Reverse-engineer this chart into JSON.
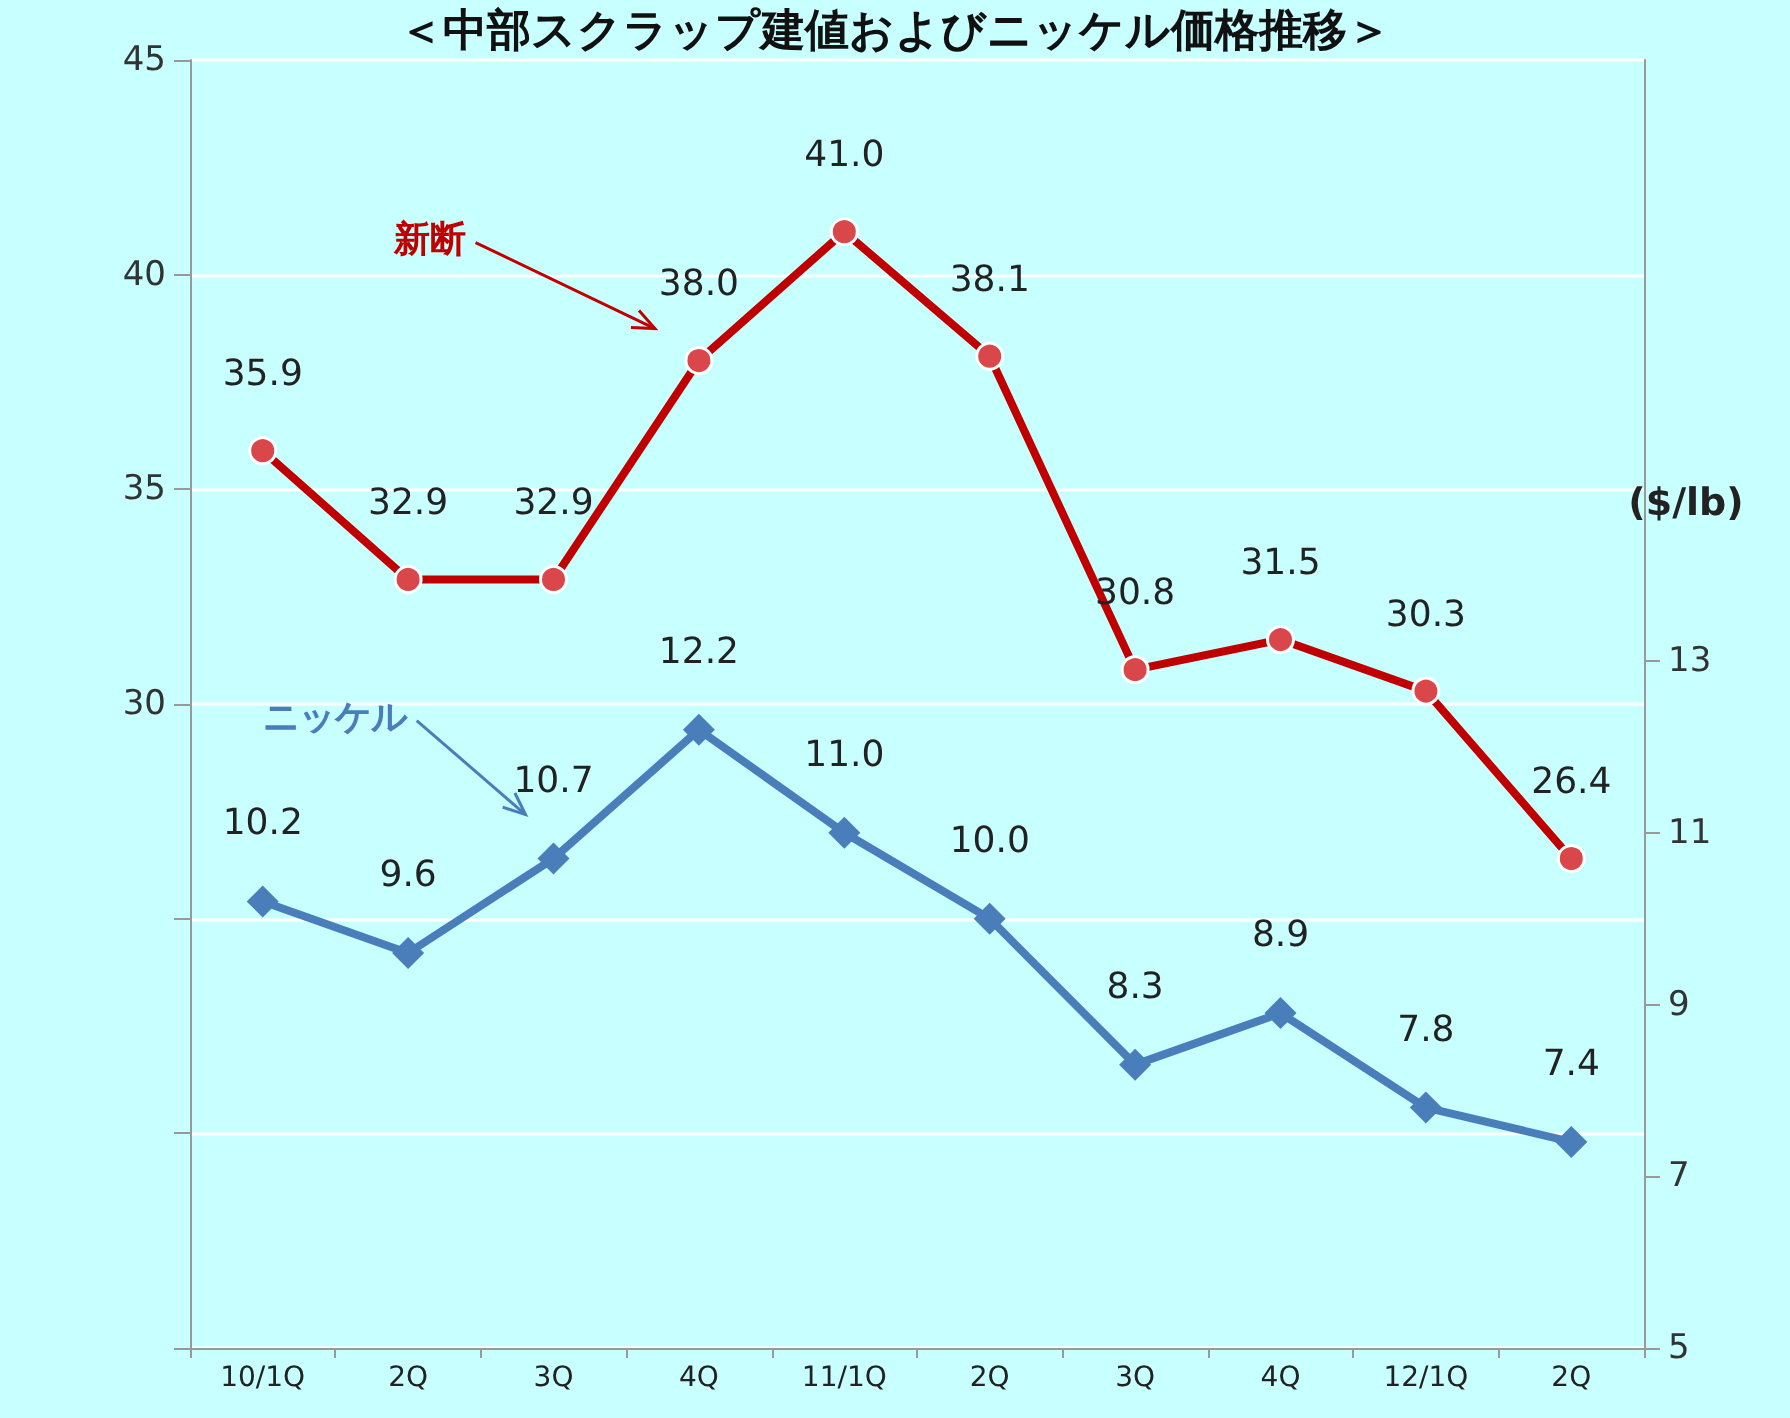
{
  "chart_data": {
    "type": "line",
    "title": "＜中部スクラップ建値およびニッケル価格推移＞",
    "y2label": "($/lb)",
    "categories": [
      "10/1Q",
      "2Q",
      "3Q",
      "4Q",
      "11/1Q",
      "2Q",
      "3Q",
      "4Q",
      "12/1Q",
      "2Q"
    ],
    "series": [
      {
        "name": "新断",
        "color": "#c00000",
        "marker": "circle",
        "values": [
          35.9,
          32.9,
          32.9,
          38.0,
          41.0,
          38.1,
          30.8,
          31.5,
          30.3,
          26.4
        ],
        "value_labels": [
          "35.9",
          "32.9",
          "32.9",
          "38.0",
          "41.0",
          "38.1",
          "30.8",
          "31.5",
          "30.3",
          "26.4"
        ]
      },
      {
        "name": "ニッケル",
        "color": "#4a7ebb",
        "marker": "diamond",
        "axis": "y2",
        "values": [
          10.2,
          9.6,
          10.7,
          12.2,
          11.0,
          10.0,
          8.3,
          8.9,
          7.8,
          7.4
        ],
        "value_labels": [
          "10.2",
          "9.6",
          "10.7",
          "12.2",
          "11.0",
          "10.0",
          "8.3",
          "8.9",
          "7.8",
          "7.4"
        ]
      }
    ],
    "ylim": [
      15,
      45
    ],
    "yticks": [
      {
        "value": 15,
        "label": null
      },
      {
        "value": 20,
        "label": null
      },
      {
        "value": 25,
        "label": null
      },
      30,
      35,
      40,
      45
    ],
    "y2lim": [
      5,
      20
    ],
    "y2ticks": [
      5,
      7,
      9,
      11,
      13
    ],
    "grid": "y",
    "legend": false
  }
}
